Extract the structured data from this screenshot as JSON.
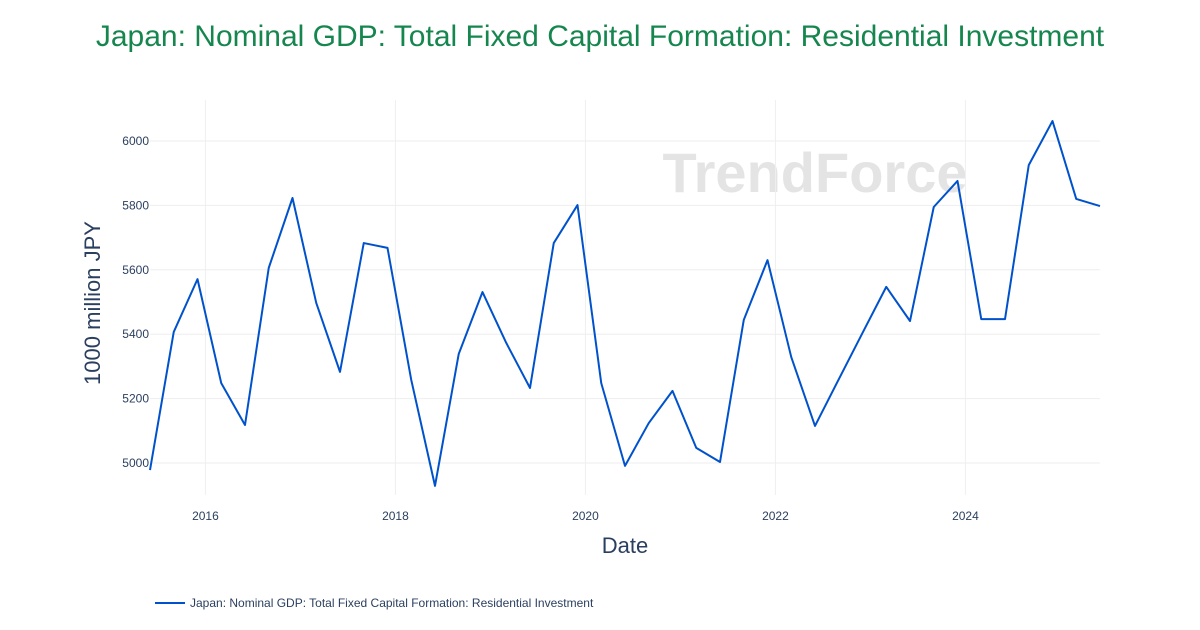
{
  "title": "Japan: Nominal GDP: Total Fixed Capital Formation: Residential Investment",
  "watermark": "TrendForce",
  "chart_data": {
    "type": "line",
    "title": "Japan: Nominal GDP: Total Fixed Capital Formation: Residential Investment",
    "xlabel": "Date",
    "ylabel": "1000 million JPY",
    "ylim": [
      4880,
      6130
    ],
    "xlim": [
      "2015-06",
      "2025-06"
    ],
    "yticks": [
      5000,
      5200,
      5400,
      5600,
      5800,
      6000
    ],
    "xticks": [
      "2016",
      "2018",
      "2020",
      "2022",
      "2024"
    ],
    "grid": true,
    "legend_placement": "bottom-left",
    "color": "#0052cc",
    "series": [
      {
        "name": "Japan: Nominal GDP: Total Fixed Capital Formation: Residential Investment",
        "x": [
          "2015-06",
          "2015-09",
          "2015-12",
          "2016-03",
          "2016-06",
          "2016-09",
          "2016-12",
          "2017-03",
          "2017-06",
          "2017-09",
          "2017-12",
          "2018-03",
          "2018-06",
          "2018-09",
          "2018-12",
          "2019-03",
          "2019-06",
          "2019-09",
          "2019-12",
          "2020-03",
          "2020-06",
          "2020-09",
          "2020-12",
          "2021-03",
          "2021-06",
          "2021-09",
          "2021-12",
          "2022-03",
          "2022-06",
          "2022-09",
          "2022-12",
          "2023-03",
          "2023-06",
          "2023-09",
          "2023-12",
          "2024-03",
          "2024-06",
          "2024-09",
          "2024-12",
          "2025-03",
          "2025-06"
        ],
        "values": [
          4978,
          5407,
          5571,
          5248,
          5118,
          5606,
          5823,
          5497,
          5283,
          5683,
          5668,
          5258,
          4929,
          5339,
          5531,
          5373,
          5233,
          5683,
          5801,
          5248,
          4991,
          5124,
          5224,
          5047,
          5003,
          5444,
          5630,
          5329,
          5115,
          5260,
          5404,
          5547,
          5441,
          5795,
          5876,
          5447,
          5447,
          5925,
          6062,
          5820,
          5798
        ]
      }
    ]
  }
}
